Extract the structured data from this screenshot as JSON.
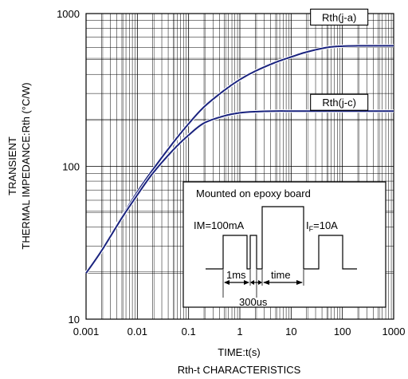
{
  "chart_data": {
    "type": "line",
    "title": "",
    "caption": "Rth-t CHARACTERISTICS",
    "xlabel": "TIME:t(s)",
    "ylabel_line1": "TRANSIENT",
    "ylabel_line2": "THERMAL IMPEDANCE:Rth (°C/W)",
    "x_scale": "log",
    "y_scale": "log",
    "xlim": [
      0.001,
      1000
    ],
    "ylim": [
      10,
      1000
    ],
    "grid": true,
    "x_ticks": [
      {
        "value": 0.001,
        "label": "0.001"
      },
      {
        "value": 0.01,
        "label": "0.01"
      },
      {
        "value": 0.1,
        "label": "0.1"
      },
      {
        "value": 1,
        "label": "1"
      },
      {
        "value": 10,
        "label": "10"
      },
      {
        "value": 100,
        "label": "100"
      },
      {
        "value": 1000,
        "label": "1000"
      }
    ],
    "y_ticks": [
      {
        "value": 10,
        "label": "10"
      },
      {
        "value": 100,
        "label": "100"
      },
      {
        "value": 1000,
        "label": "1000"
      }
    ],
    "series": [
      {
        "name": "Rth(j-a)",
        "color": "#1a237e",
        "x": [
          0.001,
          0.002,
          0.005,
          0.01,
          0.02,
          0.05,
          0.1,
          0.2,
          0.5,
          1,
          2,
          5,
          10,
          20,
          50,
          100,
          200,
          500,
          1000
        ],
        "y": [
          20,
          28,
          47,
          68,
          95,
          143,
          190,
          245,
          315,
          370,
          420,
          480,
          520,
          560,
          600,
          612,
          615,
          615,
          615
        ]
      },
      {
        "name": "Rth(j-c)",
        "color": "#1a237e",
        "x": [
          0.001,
          0.002,
          0.005,
          0.01,
          0.02,
          0.05,
          0.1,
          0.2,
          0.5,
          1,
          2,
          5,
          10,
          20,
          50,
          100,
          200,
          500,
          1000
        ],
        "y": [
          20,
          28,
          46,
          65,
          90,
          128,
          160,
          192,
          214,
          224,
          228,
          230,
          230,
          230,
          230,
          230,
          230,
          230,
          230
        ]
      }
    ],
    "inset": {
      "title": "Mounted on epoxy board",
      "im_label": "IM=100mA",
      "if_label_main": "I",
      "if_label_sub": "F",
      "if_label_rest": "=10A",
      "t1_label": "1ms",
      "t2_label": "300us",
      "t3_label": "time"
    }
  }
}
